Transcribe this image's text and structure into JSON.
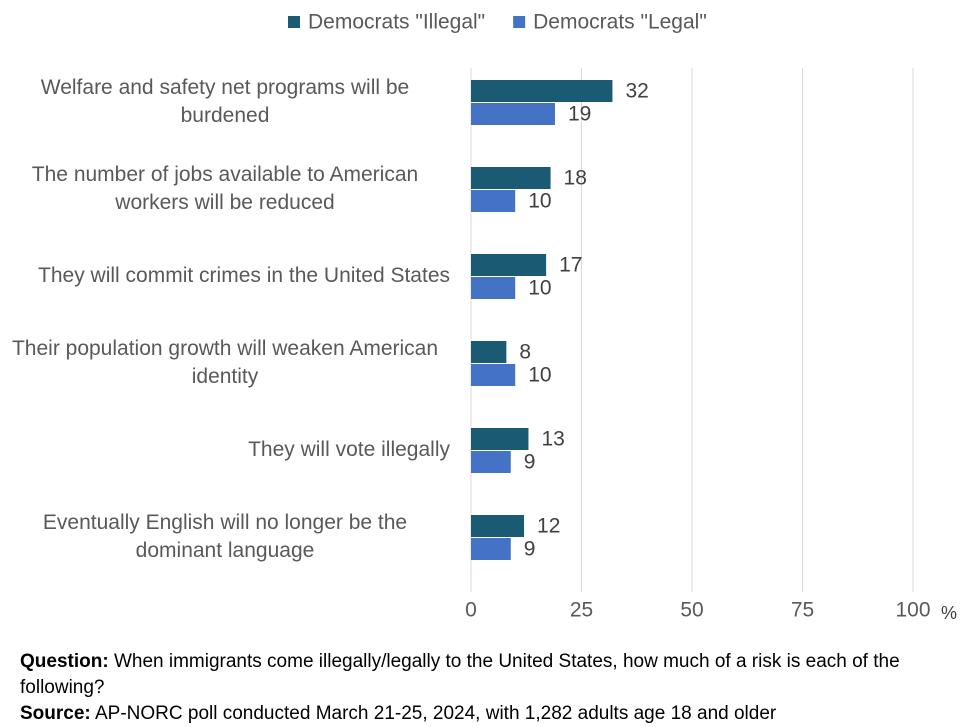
{
  "chart_data": {
    "type": "barh",
    "categories": [
      "Welfare and safety net programs will be burdened",
      "The number of jobs available to American workers will be reduced",
      "They will commit crimes in the United States",
      "Their population growth will weaken American identity",
      "They will vote illegally",
      "Eventually English will no longer be the dominant language"
    ],
    "series": [
      {
        "name": "Democrats \"Illegal\"",
        "color": "#1a5b73",
        "values": [
          32,
          18,
          17,
          8,
          13,
          12
        ]
      },
      {
        "name": "Democrats \"Legal\"",
        "color": "#4472c4",
        "values": [
          19,
          10,
          10,
          10,
          9,
          9
        ]
      }
    ],
    "xlim": [
      0,
      100
    ],
    "xticks": [
      0,
      25,
      50,
      75,
      100
    ],
    "xlabel": "%",
    "grid": true,
    "legend": "top",
    "footnote": {
      "question_label": "Question:",
      "question": "When immigrants come illegally/legally to the United States, how much of a risk is each of the following?",
      "source_label": "Source:",
      "source": "AP-NORC poll conducted March 21-25, 2024, with 1,282 adults age 18 and older"
    }
  }
}
